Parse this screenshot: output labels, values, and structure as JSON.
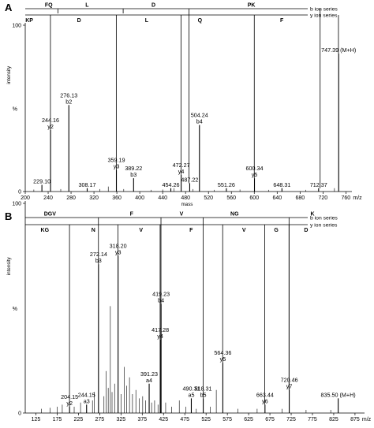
{
  "panels": [
    {
      "letter": "A",
      "chart_data": {
        "type": "bar",
        "xlabel": "mass",
        "x_unit": "m/z",
        "ylabel": "intensity",
        "y_unit": "%",
        "xlim": [
          200,
          765
        ],
        "x_ticks": [
          200,
          240,
          280,
          320,
          360,
          400,
          440,
          480,
          520,
          560,
          600,
          640,
          680,
          720,
          760
        ],
        "ylim": [
          0,
          100
        ],
        "y_ticks": [
          0,
          100
        ],
        "b_series_label": "b ion series",
        "y_series_label": "y ion series",
        "b_sequence": [
          {
            "text": "FQ",
            "mass": 241
          },
          {
            "text": "L",
            "mass": 308
          },
          {
            "text": "D",
            "mass": 424
          },
          {
            "text": "PK",
            "mass": 595
          }
        ],
        "b_dividers": [
          257,
          371,
          486,
          715
        ],
        "y_sequence": [
          {
            "text": "KP",
            "mass": 207
          },
          {
            "text": "D",
            "mass": 294
          },
          {
            "text": "L",
            "mass": 412
          },
          {
            "text": "Q",
            "mass": 505
          },
          {
            "text": "F",
            "mass": 648
          }
        ],
        "y_dividers": [
          244,
          359,
          472,
          600,
          747
        ],
        "labeled_peaks": [
          {
            "mz": 229.1,
            "intensity": 4,
            "label": "229.10",
            "ion": ""
          },
          {
            "mz": 244.16,
            "intensity": 37,
            "label": "244.16",
            "ion": "y2"
          },
          {
            "mz": 276.13,
            "intensity": 52,
            "label": "276.13",
            "ion": "b2"
          },
          {
            "mz": 308.17,
            "intensity": 2,
            "label": "308.17",
            "ion": ""
          },
          {
            "mz": 359.19,
            "intensity": 13,
            "label": "359.19",
            "ion": "y3"
          },
          {
            "mz": 389.22,
            "intensity": 8,
            "label": "389.22",
            "ion": "b3"
          },
          {
            "mz": 454.26,
            "intensity": 2,
            "label": "454.26",
            "ion": ""
          },
          {
            "mz": 472.27,
            "intensity": 10,
            "label": "472.27",
            "ion": "y4"
          },
          {
            "mz": 487.22,
            "intensity": 5,
            "label": "487.22",
            "ion": ""
          },
          {
            "mz": 504.24,
            "intensity": 40,
            "label": "504.24",
            "ion": "b4"
          },
          {
            "mz": 551.26,
            "intensity": 2,
            "label": "551.26",
            "ion": ""
          },
          {
            "mz": 600.34,
            "intensity": 8,
            "label": "600.34",
            "ion": "y5"
          },
          {
            "mz": 648.31,
            "intensity": 2,
            "label": "648.31",
            "ion": ""
          },
          {
            "mz": 712.37,
            "intensity": 2,
            "label": "712.37",
            "ion": ""
          },
          {
            "mz": 747.39,
            "intensity": 83,
            "label": "747.39 (M+H)",
            "ion": ""
          }
        ],
        "minor_peaks": [
          {
            "mz": 215,
            "intensity": 1.2
          },
          {
            "mz": 262,
            "intensity": 1.5
          },
          {
            "mz": 330,
            "intensity": 1.5
          },
          {
            "mz": 345,
            "intensity": 3
          },
          {
            "mz": 372,
            "intensity": 1.5
          },
          {
            "mz": 420,
            "intensity": 1
          },
          {
            "mz": 440,
            "intensity": 1.2
          },
          {
            "mz": 460,
            "intensity": 2
          },
          {
            "mz": 493,
            "intensity": 1.5
          },
          {
            "mz": 530,
            "intensity": 1
          },
          {
            "mz": 575,
            "intensity": 1.2
          },
          {
            "mz": 625,
            "intensity": 1
          },
          {
            "mz": 690,
            "intensity": 1
          },
          {
            "mz": 740,
            "intensity": 2
          }
        ]
      }
    },
    {
      "letter": "B",
      "chart_data": {
        "type": "bar",
        "xlabel": "mass",
        "x_unit": "m/z",
        "ylabel": "intensity",
        "y_unit": "%",
        "xlim": [
          100,
          890
        ],
        "x_ticks": [
          125,
          175,
          225,
          275,
          325,
          375,
          425,
          475,
          525,
          575,
          625,
          675,
          725,
          775,
          825,
          875
        ],
        "ylim": [
          0,
          100
        ],
        "y_ticks": [
          0,
          100
        ],
        "b_series_label": "b ion series",
        "y_series_label": "y ion series",
        "b_sequence": [
          {
            "text": "DGV",
            "mass": 158
          },
          {
            "text": "F",
            "mass": 350
          },
          {
            "text": "V",
            "mass": 467
          },
          {
            "text": "NG",
            "mass": 592
          },
          {
            "text": "K",
            "mass": 775
          }
        ],
        "b_dividers": [
          272,
          419,
          518,
          720
        ],
        "y_sequence": [
          {
            "text": "KG",
            "mass": 146
          },
          {
            "text": "N",
            "mass": 260
          },
          {
            "text": "V",
            "mass": 372
          },
          {
            "text": "F",
            "mass": 490
          },
          {
            "text": "V",
            "mass": 614
          },
          {
            "text": "G",
            "mass": 690
          },
          {
            "text": "D",
            "mass": 760
          }
        ],
        "y_dividers": [
          204,
          318,
          417,
          564,
          663,
          720
        ],
        "labeled_peaks": [
          {
            "mz": 204.15,
            "intensity": 3,
            "label": "204.15",
            "ion": "y2"
          },
          {
            "mz": 244.15,
            "intensity": 4,
            "label": "244.15",
            "ion": "a3"
          },
          {
            "mz": 272.14,
            "intensity": 71,
            "label": "272.14",
            "ion": "b3"
          },
          {
            "mz": 318.2,
            "intensity": 75,
            "label": "318.20",
            "ion": "y3"
          },
          {
            "mz": 391.23,
            "intensity": 14,
            "label": "391.23",
            "ion": "a4"
          },
          {
            "mz": 417.28,
            "intensity": 35,
            "label": "417.28",
            "ion": "y4"
          },
          {
            "mz": 419.23,
            "intensity": 52,
            "label": "419.23",
            "ion": "b4"
          },
          {
            "mz": 490.31,
            "intensity": 7,
            "label": "490.31",
            "ion": "a5"
          },
          {
            "mz": 518.31,
            "intensity": 7,
            "label": "518.31",
            "ion": "b5"
          },
          {
            "mz": 564.36,
            "intensity": 24,
            "label": "564.36",
            "ion": "y5"
          },
          {
            "mz": 663.44,
            "intensity": 4,
            "label": "663.44",
            "ion": "y6"
          },
          {
            "mz": 720.46,
            "intensity": 11,
            "label": "720.46",
            "ion": "y7"
          },
          {
            "mz": 835.5,
            "intensity": 7,
            "label": "835.50 (M+H)",
            "ion": ""
          }
        ],
        "minor_peaks": [
          {
            "mz": 138,
            "intensity": 2
          },
          {
            "mz": 158,
            "intensity": 2.5
          },
          {
            "mz": 175,
            "intensity": 3
          },
          {
            "mz": 187,
            "intensity": 4
          },
          {
            "mz": 215,
            "intensity": 3
          },
          {
            "mz": 230,
            "intensity": 5
          },
          {
            "mz": 258,
            "intensity": 6
          },
          {
            "mz": 262,
            "intensity": 10
          },
          {
            "mz": 285,
            "intensity": 8
          },
          {
            "mz": 290,
            "intensity": 20
          },
          {
            "mz": 295,
            "intensity": 12
          },
          {
            "mz": 300,
            "intensity": 51
          },
          {
            "mz": 304,
            "intensity": 10
          },
          {
            "mz": 310,
            "intensity": 14
          },
          {
            "mz": 325,
            "intensity": 9
          },
          {
            "mz": 333,
            "intensity": 22
          },
          {
            "mz": 338,
            "intensity": 13
          },
          {
            "mz": 345,
            "intensity": 17
          },
          {
            "mz": 352,
            "intensity": 9
          },
          {
            "mz": 360,
            "intensity": 11
          },
          {
            "mz": 368,
            "intensity": 7
          },
          {
            "mz": 376,
            "intensity": 8
          },
          {
            "mz": 383,
            "intensity": 6
          },
          {
            "mz": 397,
            "intensity": 5
          },
          {
            "mz": 404,
            "intensity": 6
          },
          {
            "mz": 412,
            "intensity": 4
          },
          {
            "mz": 430,
            "intensity": 5
          },
          {
            "mz": 444,
            "intensity": 3
          },
          {
            "mz": 462,
            "intensity": 6
          },
          {
            "mz": 477,
            "intensity": 3
          },
          {
            "mz": 502,
            "intensity": 2
          },
          {
            "mz": 535,
            "intensity": 3
          },
          {
            "mz": 549,
            "intensity": 11
          },
          {
            "mz": 600,
            "intensity": 2
          },
          {
            "mz": 645,
            "intensity": 2
          },
          {
            "mz": 704,
            "intensity": 2
          },
          {
            "mz": 760,
            "intensity": 1.5
          },
          {
            "mz": 818,
            "intensity": 1.5
          }
        ]
      }
    }
  ]
}
